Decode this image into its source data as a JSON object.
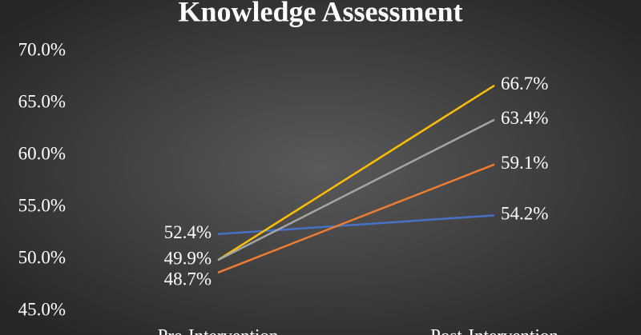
{
  "chart_data": {
    "type": "line",
    "title": "Knowledge Assessment",
    "categories": [
      "Pre-Intervention",
      "Post-Intervention"
    ],
    "series": [
      {
        "color": "#4472c4",
        "values": [
          52.4,
          54.2
        ],
        "value_labels": [
          "52.4%",
          "54.2%"
        ]
      },
      {
        "color": "#ffc000",
        "values": [
          49.9,
          66.7
        ],
        "value_labels": [
          "49.9%",
          "66.7%"
        ]
      },
      {
        "color": "#a5a5a5",
        "values": [
          49.9,
          63.4
        ],
        "value_labels": [
          null,
          "63.4%"
        ]
      },
      {
        "color": "#ed7d31",
        "values": [
          48.7,
          59.1
        ],
        "value_labels": [
          "48.7%",
          "59.1%"
        ]
      }
    ],
    "ylim": [
      45,
      70
    ],
    "yticks": [
      {
        "value": 45,
        "label": "45.0%"
      },
      {
        "value": 50,
        "label": "50.0%"
      },
      {
        "value": 55,
        "label": "55.0%"
      },
      {
        "value": 60,
        "label": "60.0%"
      },
      {
        "value": 65,
        "label": "65.0%"
      },
      {
        "value": 70,
        "label": "70.0%"
      }
    ],
    "grid": false
  }
}
